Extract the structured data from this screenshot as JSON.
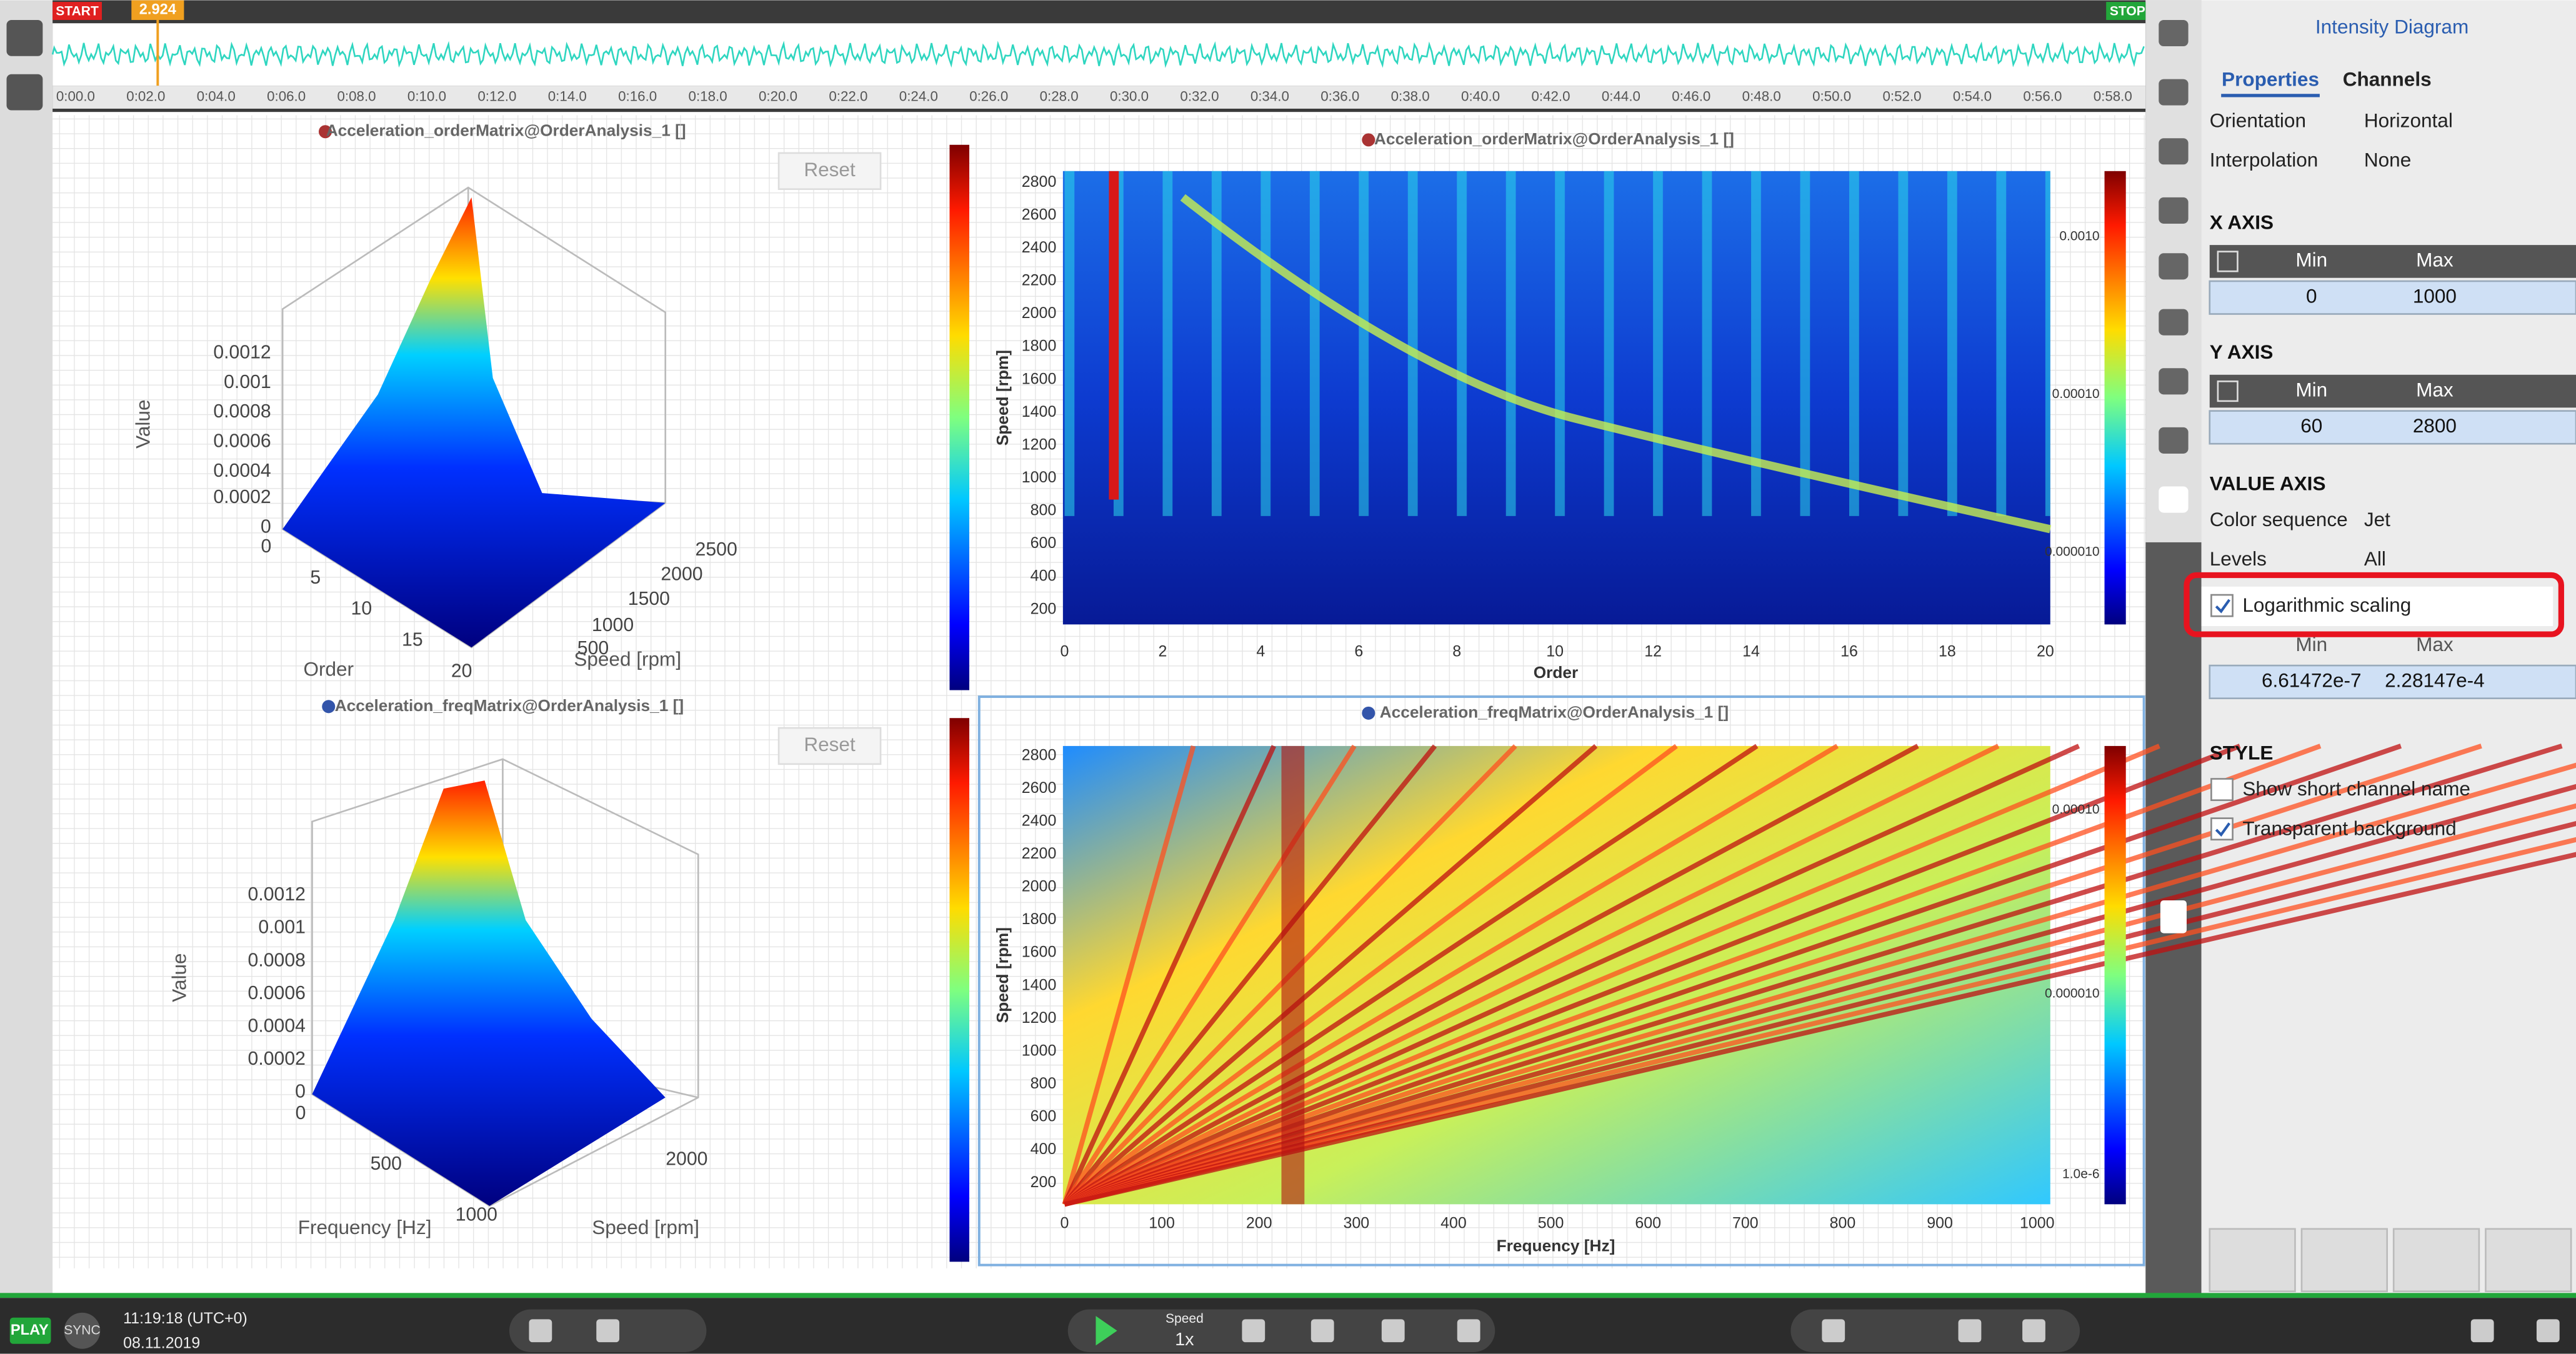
{
  "timeline": {
    "start": "START",
    "stop": "STOP",
    "cursor": "2.924",
    "ticks": [
      "0:00.0",
      "0:02.0",
      "0:04.0",
      "0:06.0",
      "0:08.0",
      "0:10.0",
      "0:12.0",
      "0:14.0",
      "0:16.0",
      "0:18.0",
      "0:20.0",
      "0:22.0",
      "0:24.0",
      "0:26.0",
      "0:28.0",
      "0:30.0",
      "0:32.0",
      "0:34.0",
      "0:36.0",
      "0:38.0",
      "0:40.0",
      "0:42.0",
      "0:44.0",
      "0:46.0",
      "0:48.0",
      "0:50.0",
      "0:52.0",
      "0:54.0",
      "0:56.0",
      "0:58.0"
    ]
  },
  "plots3d": [
    {
      "title": "Acceleration_orderMatrix@OrderAnalysis_1 []",
      "reset": "Reset",
      "z_label": "Value",
      "z_ticks": [
        "0.0012",
        "0.001",
        "0.0008",
        "0.0006",
        "0.0004",
        "0.0002",
        "0"
      ],
      "x_label": "Order",
      "x_ticks": [
        "0",
        "5",
        "10",
        "15",
        "20"
      ],
      "y_label": "Speed [rpm]",
      "y_ticks": [
        "500",
        "1000",
        "1500",
        "2000",
        "2500"
      ]
    },
    {
      "title": "Acceleration_freqMatrix@OrderAnalysis_1 []",
      "reset": "Reset",
      "z_label": "Value",
      "z_ticks": [
        "0.0012",
        "0.001",
        "0.0008",
        "0.0006",
        "0.0004",
        "0.0002",
        "0"
      ],
      "x_label": "Frequency [Hz]",
      "x_ticks": [
        "0",
        "500",
        "1000"
      ],
      "y_label": "Speed [rpm]",
      "y_ticks": [
        "2000"
      ]
    }
  ],
  "heatmaps": [
    {
      "title": "Acceleration_orderMatrix@OrderAnalysis_1 []",
      "x_label": "Order",
      "y_label": "Speed [rpm]",
      "x_ticks": [
        0,
        2,
        4,
        6,
        8,
        10,
        12,
        14,
        16,
        18,
        20
      ],
      "y_ticks": [
        200,
        400,
        600,
        800,
        1000,
        1200,
        1400,
        1600,
        1800,
        2000,
        2200,
        2400,
        2600,
        2800
      ],
      "color_ticks": [
        "0.0010",
        "0.00010",
        "0.000010"
      ]
    },
    {
      "title": "Acceleration_freqMatrix@OrderAnalysis_1 []",
      "x_label": "Frequency [Hz]",
      "y_label": "Speed [rpm]",
      "x_ticks": [
        0,
        100,
        200,
        300,
        400,
        500,
        600,
        700,
        800,
        900,
        1000
      ],
      "y_ticks": [
        200,
        400,
        600,
        800,
        1000,
        1200,
        1400,
        1600,
        1800,
        2000,
        2200,
        2400,
        2600,
        2800
      ],
      "color_ticks": [
        "0.00010",
        "0.000010",
        "1.0e-6"
      ]
    }
  ],
  "panel": {
    "title": "Intensity Diagram",
    "tabs": [
      "Properties",
      "Channels"
    ],
    "orientation": {
      "label": "Orientation",
      "value": "Horizontal"
    },
    "interpolation": {
      "label": "Interpolation",
      "value": "None"
    },
    "x_axis": {
      "heading": "X AXIS",
      "min_header": "Min",
      "max_header": "Max",
      "min": "0",
      "max": "1000"
    },
    "y_axis": {
      "heading": "Y AXIS",
      "min_header": "Min",
      "max_header": "Max",
      "min": "60",
      "max": "2800"
    },
    "value_axis": {
      "heading": "VALUE AXIS",
      "color_sequence": {
        "label": "Color sequence",
        "value": "Jet"
      },
      "levels": {
        "label": "Levels",
        "value": "All"
      },
      "log_scaling": {
        "label": "Logarithmic scaling",
        "checked": true
      },
      "min_header": "Min",
      "max_header": "Max",
      "min": "6.61472e-7",
      "max": "2.28147e-4"
    },
    "style": {
      "heading": "STYLE",
      "short_name": {
        "label": "Show short channel name",
        "checked": false
      },
      "transparent": {
        "label": "Transparent background",
        "checked": true
      }
    }
  },
  "status": {
    "play": "PLAY",
    "sync": "SYNC",
    "time": "11:19:18 (UTC+0)",
    "date": "08.11.2019",
    "speed_label": "Speed",
    "speed": "1x"
  }
}
